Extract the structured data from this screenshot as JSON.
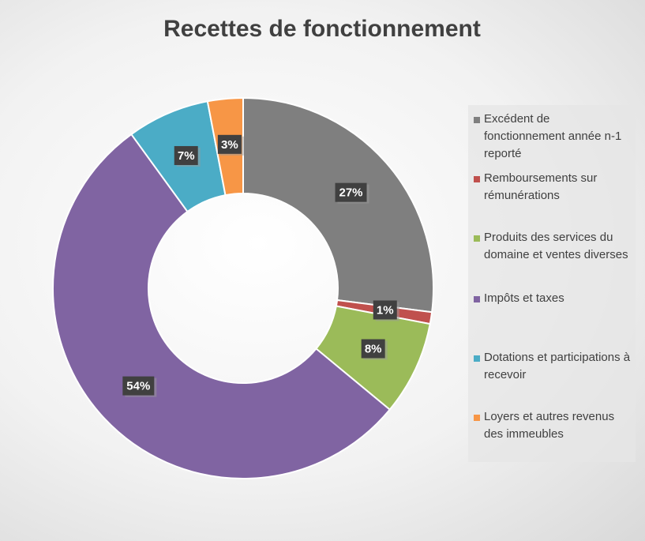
{
  "chart_data": {
    "type": "donut",
    "title": "Recettes de fonctionnement",
    "categories": [
      "Excédent de fonctionnement année n-1 reporté",
      "Remboursements sur rémunérations",
      "Produits des services du domaine et ventes diverses",
      "Impôts et taxes",
      "Dotations et participations à recevoir",
      "Loyers et autres revenus des immeubles"
    ],
    "values": [
      27,
      1,
      8,
      54,
      7,
      3
    ],
    "value_labels": [
      "27%",
      "1%",
      "8%",
      "54%",
      "7%",
      "3%"
    ],
    "colors": [
      "#7f7f7f",
      "#c0504d",
      "#9bbb59",
      "#8064a2",
      "#4bacc6",
      "#f79646"
    ],
    "legend": "right"
  }
}
